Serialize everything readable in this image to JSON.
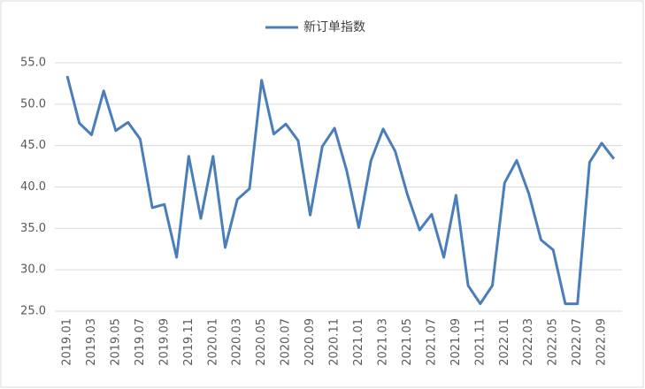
{
  "chart_data": {
    "type": "line",
    "categories": [
      "2019.01",
      null,
      "2019.03",
      null,
      "2019.05",
      null,
      "2019.07",
      null,
      "2019.09",
      null,
      "2019.11",
      null,
      "2020.01",
      null,
      "2020.03",
      null,
      "2020.05",
      null,
      "2020.07",
      null,
      "2020.09",
      null,
      "2020.11",
      null,
      "2021.01",
      null,
      "2021.03",
      null,
      "2021.05",
      null,
      "2021.07",
      null,
      "2021.09",
      null,
      "2021.11",
      null,
      "2022.01",
      null,
      "2022.03",
      null,
      "2022.05",
      null,
      "2022.07",
      null,
      "2022.09",
      null
    ],
    "series": [
      {
        "name": "新订单指数",
        "color": "#4a7ebb",
        "values": [
          53.4,
          47.7,
          46.3,
          51.6,
          46.8,
          47.8,
          45.8,
          37.5,
          37.9,
          31.5,
          43.7,
          36.2,
          43.7,
          32.7,
          38.5,
          39.8,
          52.9,
          46.4,
          47.6,
          45.6,
          36.6,
          44.9,
          47.1,
          42.0,
          35.1,
          43.2,
          47.0,
          44.3,
          39.1,
          34.8,
          36.7,
          31.5,
          39.0,
          28.1,
          25.9,
          28.1,
          40.5,
          43.2,
          39.2,
          33.6,
          32.4,
          25.9,
          25.9,
          43.0,
          45.3,
          43.4
        ]
      }
    ],
    "ylim": [
      25,
      55
    ],
    "yticks": [
      {
        "value": 25,
        "label": "25.0"
      },
      {
        "value": 30,
        "label": "30.0"
      },
      {
        "value": 35,
        "label": "35.0"
      },
      {
        "value": 40,
        "label": "40.0"
      },
      {
        "value": 45,
        "label": "45.0"
      },
      {
        "value": 50,
        "label": "50.0"
      },
      {
        "value": 55,
        "label": "55.0"
      }
    ],
    "grid": true
  }
}
